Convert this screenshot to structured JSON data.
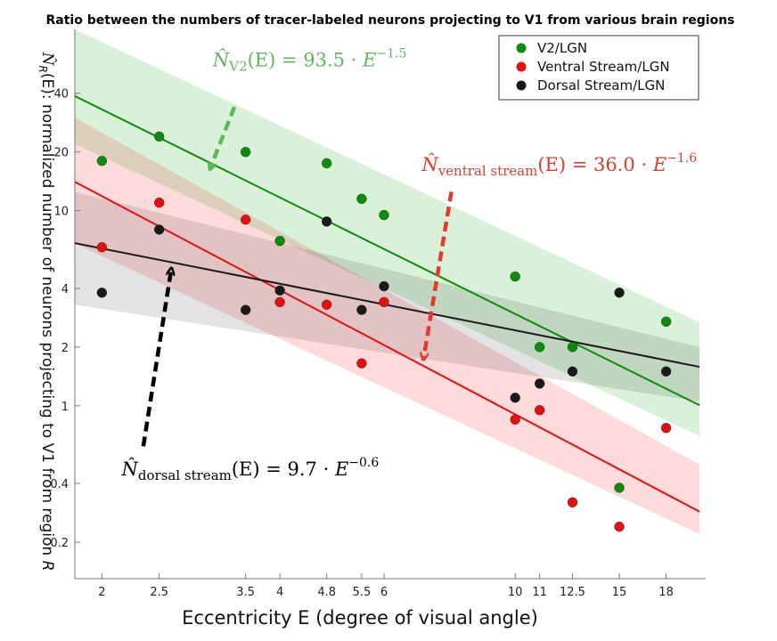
{
  "chart_data": {
    "type": "scatter",
    "title": "Ratio between the numbers of tracer-labeled neurons projecting to V1 from various brain regions",
    "xlabel": "Eccentricity E (degree of visual angle)",
    "ylabel_symbol": "N̂",
    "ylabel_sub": "R",
    "ylabel_rest": "(E): normalized number of neurons projecting to V1 from region ",
    "ylabel_region": "R",
    "x_scale": "log",
    "y_scale": "log",
    "xlim": [
      1.8,
      21
    ],
    "ylim": [
      0.13,
      85
    ],
    "x_ticks": [
      2,
      2.5,
      3.5,
      4,
      4.8,
      5.5,
      6,
      10,
      11,
      12.5,
      15,
      18
    ],
    "x_tick_labels": [
      "2",
      "2.5",
      "3.5",
      "4",
      "4.8",
      "5.5",
      "6",
      "10",
      "11",
      "12.5",
      "15",
      "18"
    ],
    "y_ticks": [
      0.2,
      0.4,
      1,
      2,
      4,
      10,
      20,
      40
    ],
    "y_tick_labels": [
      "0.2",
      "0.4",
      "1",
      "2",
      "4",
      "10",
      "20",
      "40"
    ],
    "legend_position": "top-right",
    "grid": false,
    "series": [
      {
        "name": "V2/LGN",
        "color": "#0b8c0b",
        "band_color": "rgba(0,160,0,0.15)",
        "fit": {
          "a": 93.5,
          "b": -1.5
        },
        "band": [
          [
            1.8,
            85,
            20.5,
            2.68
          ],
          [
            1.8,
            22,
            20.5,
            0.7
          ]
        ],
        "points": [
          [
            2,
            18
          ],
          [
            2.5,
            24
          ],
          [
            3.5,
            20
          ],
          [
            4,
            7
          ],
          [
            4.8,
            17.5
          ],
          [
            5.5,
            11.5
          ],
          [
            6,
            9.5
          ],
          [
            10,
            4.6
          ],
          [
            11,
            2
          ],
          [
            12.5,
            2
          ],
          [
            15,
            0.38
          ],
          [
            18,
            2.7
          ]
        ]
      },
      {
        "name": "Ventral Stream/LGN",
        "color": "#e31010",
        "band_color": "rgba(240,0,0,0.14)",
        "fit": {
          "a": 36.0,
          "b": -1.6
        },
        "band": [
          [
            1.8,
            30,
            20.5,
            0.5
          ],
          [
            1.8,
            6.8,
            20.5,
            0.22
          ]
        ],
        "points": [
          [
            2,
            6.5
          ],
          [
            2.5,
            11
          ],
          [
            3.5,
            9
          ],
          [
            4,
            3.4
          ],
          [
            4.8,
            3.3
          ],
          [
            5.5,
            1.65
          ],
          [
            6,
            3.4
          ],
          [
            10,
            0.85
          ],
          [
            11,
            0.95
          ],
          [
            12.5,
            0.32
          ],
          [
            15,
            0.24
          ],
          [
            18,
            0.77
          ]
        ]
      },
      {
        "name": "Dorsal Stream/LGN",
        "color": "#1a1a1a",
        "band_color": "rgba(0,0,0,0.11)",
        "fit": {
          "a": 9.7,
          "b": -0.6
        },
        "band": [
          [
            1.8,
            12.5,
            20.5,
            2.0
          ],
          [
            1.8,
            3.3,
            20.5,
            1.05
          ]
        ],
        "points": [
          [
            2,
            3.8
          ],
          [
            2.5,
            8
          ],
          [
            3.5,
            3.1
          ],
          [
            4,
            3.9
          ],
          [
            4.8,
            8.8
          ],
          [
            5.5,
            3.1
          ],
          [
            6,
            4.1
          ],
          [
            10,
            1.1
          ],
          [
            11,
            1.3
          ],
          [
            12.5,
            1.5
          ],
          [
            15,
            3.8
          ],
          [
            18,
            1.5
          ]
        ]
      }
    ],
    "annotations": [
      {
        "id": "v2",
        "sub": "V2",
        "rest": "(E) = 93.5 · ",
        "exponent": "−1.5",
        "color": "#5cb85c",
        "text_at": [
          3.08,
          55
        ],
        "arrow_from": [
          3.35,
          34
        ],
        "arrow_to": [
          3.05,
          16.5
        ]
      },
      {
        "id": "ventral",
        "sub": "ventral stream",
        "rest": "(E) = 36.0 · ",
        "exponent": "−1.6",
        "color": "#e23b2e",
        "text_at": [
          6.95,
          16
        ],
        "arrow_from": [
          7.8,
          12.5
        ],
        "arrow_to": [
          7.0,
          1.75
        ]
      },
      {
        "id": "dorsal",
        "sub": "dorsal stream",
        "rest": "(E) = 9.7 · ",
        "exponent": "−0.6",
        "color": "#000000",
        "text_at": [
          2.16,
          0.44
        ],
        "arrow_from": [
          2.35,
          0.62
        ],
        "arrow_to": [
          2.62,
          5.0
        ]
      }
    ]
  }
}
